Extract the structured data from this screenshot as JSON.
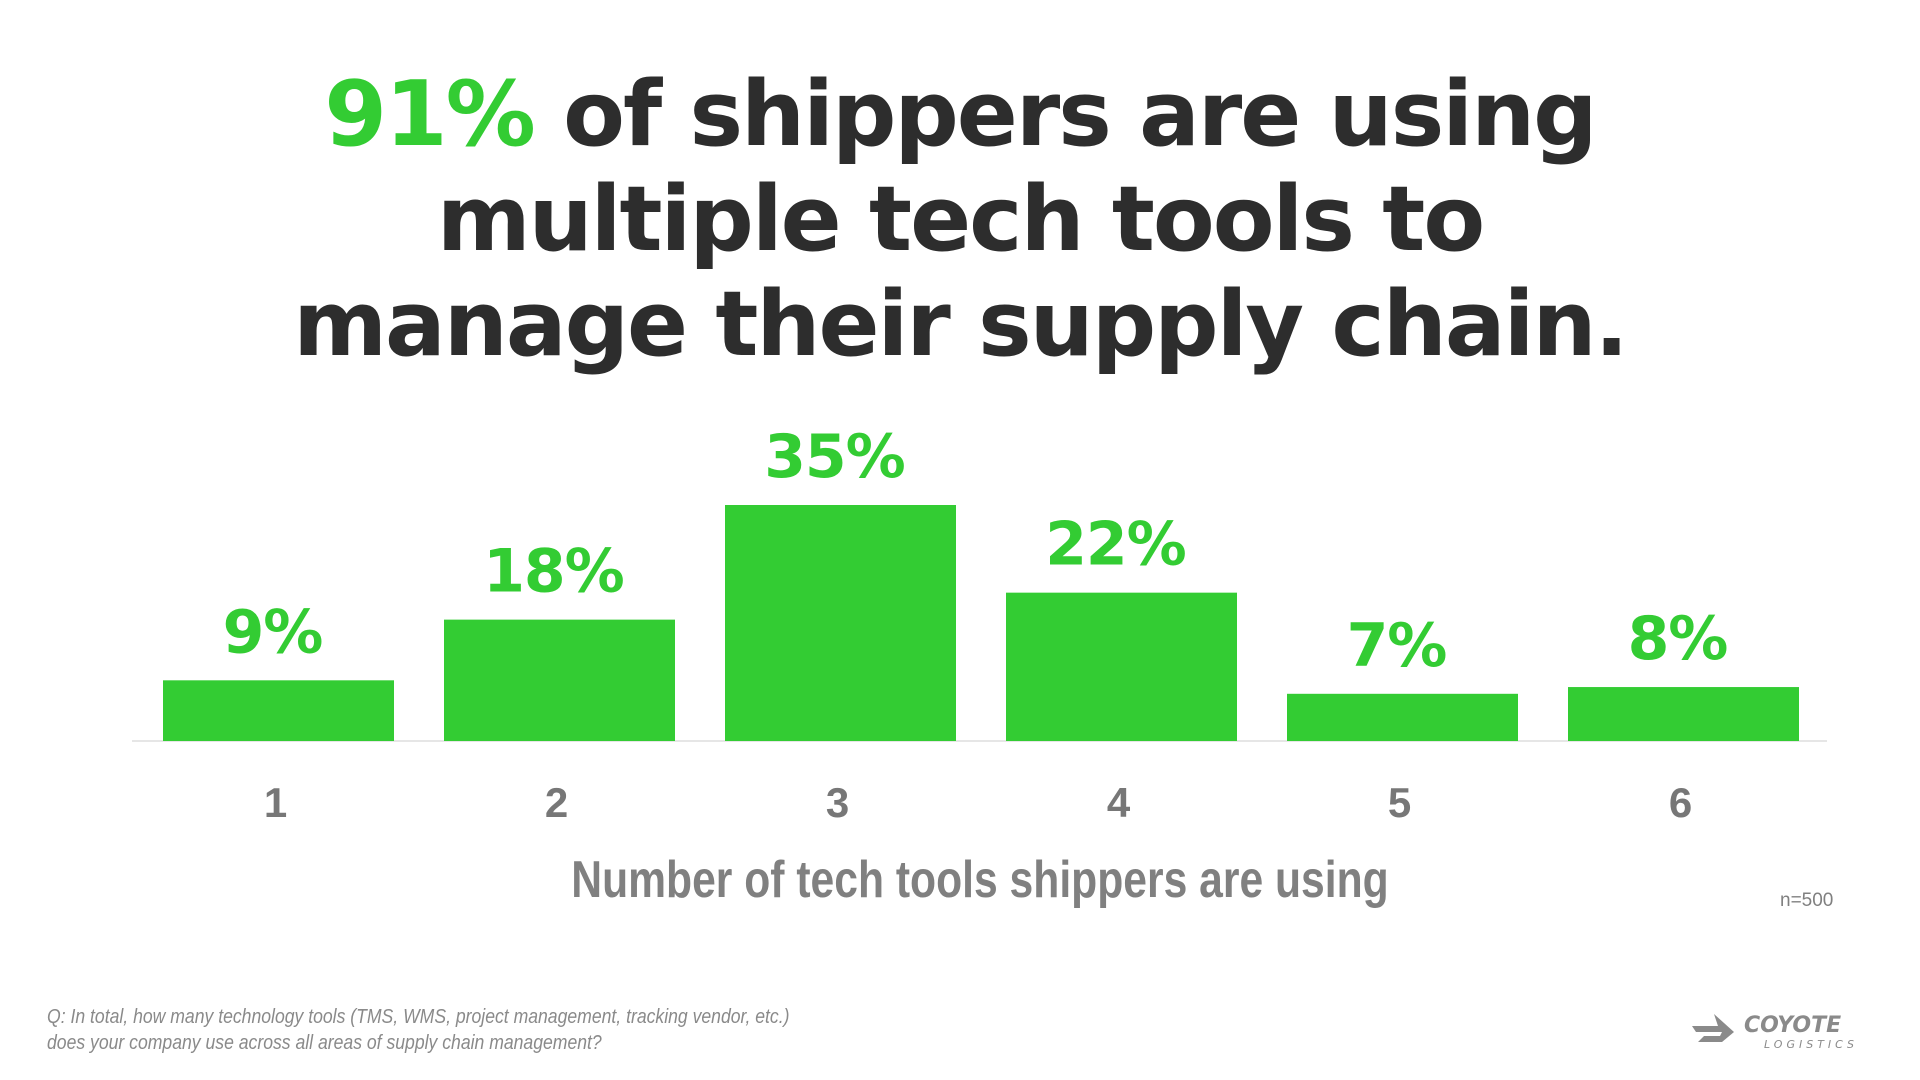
{
  "title": {
    "highlight": "91%",
    "line1_rest": " of shippers are using",
    "line2": "multiple tech tools to",
    "line3": "manage their supply chain."
  },
  "chart_data": {
    "type": "bar",
    "categories": [
      "1",
      "2",
      "3",
      "4",
      "5",
      "6"
    ],
    "values": [
      9,
      18,
      35,
      22,
      7,
      8
    ],
    "value_labels": [
      "9%",
      "18%",
      "35%",
      "22%",
      "7%",
      "8%"
    ],
    "xlabel": "Number of tech tools shippers are using",
    "ylabel": "",
    "ylim": [
      0,
      40
    ],
    "unit": "%",
    "grid": false,
    "bar_color": "#33cc33"
  },
  "sample_size": "n=500",
  "footnote": {
    "line1": "Q: In total, how many technology tools (TMS, WMS, project management, tracking vendor, etc.)",
    "line2": "does your company use across all areas of supply chain management?"
  },
  "logo": {
    "name": "COYOTE",
    "sub": "LOGISTICS"
  },
  "colors": {
    "accent": "#33cc33",
    "title": "#2d2d2d",
    "muted": "#808080"
  }
}
